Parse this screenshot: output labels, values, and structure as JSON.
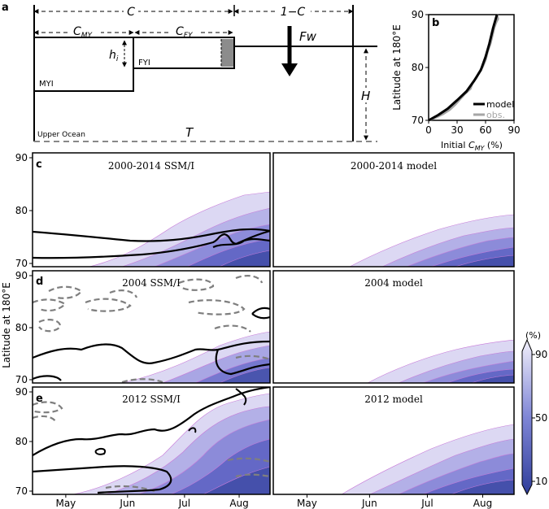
{
  "panel_a": {
    "letter": "a",
    "c_label": "C",
    "one_minus_c_label": "1−C",
    "c_my_main": "C",
    "c_my_sub": "MY",
    "c_fy_main": "C",
    "c_fy_sub": "FY",
    "hi_main": "h",
    "hi_sub": "i",
    "fyi_label": "FYI",
    "myi_label": "MYI",
    "fw_label": "Fw",
    "h_label": "H",
    "upper_ocean_label": "Upper Ocean",
    "t_label": "T"
  },
  "panel_b": {
    "letter": "b",
    "ylabel": "Latitude at 180°E",
    "xlabel_prefix": "Initial ",
    "xlabel_c": "C",
    "xlabel_sub": "MY",
    "xlabel_suffix": " (%)",
    "legend_model": "model",
    "legend_obs": "obs.",
    "model_color": "#000000",
    "obs_color": "#a6a6a6",
    "chart_data": {
      "type": "line",
      "xlim": [
        0,
        90
      ],
      "ylim": [
        70,
        90
      ],
      "xticks": [
        "0",
        "30",
        "60",
        "90"
      ],
      "yticks": [
        "70",
        "80",
        "90"
      ],
      "series": [
        {
          "name": "model",
          "x": [
            0,
            10,
            20,
            30,
            40,
            48,
            55,
            60,
            64,
            68,
            72
          ],
          "y": [
            70,
            71,
            72.2,
            73.8,
            75.5,
            77.5,
            79.5,
            82,
            84.5,
            87.5,
            90
          ]
        },
        {
          "name": "obs.",
          "x": [
            0,
            8,
            15,
            22,
            28,
            33,
            38,
            44,
            46,
            50,
            53,
            57,
            60,
            62,
            65,
            67,
            69,
            71,
            73,
            72
          ],
          "y": [
            70,
            70.6,
            71.2,
            72,
            73,
            74,
            75,
            76,
            77,
            78,
            79,
            80.2,
            81.5,
            83,
            84.5,
            86,
            87.5,
            88.5,
            89.2,
            90
          ]
        }
      ]
    }
  },
  "shared": {
    "ylabel": "Latitude at 180°E",
    "months": [
      "May",
      "Jun",
      "Jul",
      "Aug"
    ],
    "lat_ticks": [
      "70",
      "80",
      "90"
    ],
    "colorbar_unit": "(%)",
    "colorbar_ticks": [
      "90",
      "50",
      "10"
    ]
  },
  "panels": {
    "c_left": {
      "letter": "c",
      "title": "2000-2014 SSM/I"
    },
    "c_right": {
      "title": "2000-2014 model"
    },
    "d_left": {
      "letter": "d",
      "title": "2004 SSM/I"
    },
    "d_right": {
      "title": "2004 model"
    },
    "e_left": {
      "letter": "e",
      "title": "2012 SSM/I"
    },
    "e_right": {
      "title": "2012 model"
    }
  },
  "colors": {
    "fill_light": "#dcd8f3",
    "fill_mid": "#9e9be0",
    "fill_dark": "#5a5fbe",
    "fill_deep": "#3f4aa6",
    "contour_pink": "#c77ad8",
    "ssmi_solid": "#000000",
    "ssmi_dashed": "#7f7f7f"
  }
}
